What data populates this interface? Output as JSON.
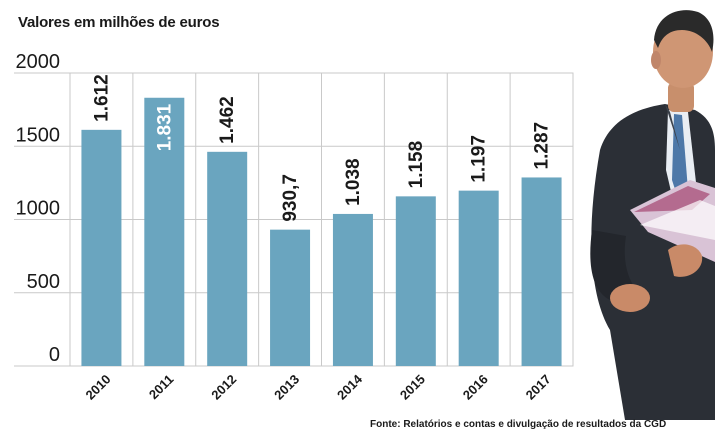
{
  "subtitle": "Valores em milhões de euros",
  "source": "Fonte: Relatórios e contas e divulgação de resultados da CGD",
  "chart_data": {
    "type": "bar",
    "categories": [
      "2010",
      "2011",
      "2012",
      "2013",
      "2014",
      "2015",
      "2016",
      "2017"
    ],
    "values": [
      1612,
      1831,
      1462,
      930.7,
      1038,
      1158,
      1197,
      1287
    ],
    "data_labels": [
      "1.612",
      "1.831",
      "1.462",
      "930,7",
      "1.038",
      "1.158",
      "1.197",
      "1.287"
    ],
    "label_inside": [
      false,
      true,
      false,
      false,
      false,
      false,
      false,
      false
    ],
    "title": "",
    "xlabel": "",
    "ylabel": "",
    "ylim": [
      0,
      2000
    ],
    "yticks": [
      0,
      500,
      1000,
      1500,
      2000
    ],
    "grid": true,
    "legend": "none",
    "colors": {
      "bar": "#6aa5bf",
      "grid": "#c9c9c9",
      "text": "#1a1a1a",
      "label_inside": "#ffffff"
    }
  },
  "photo": {
    "icon": "person-in-suit-holding-report"
  }
}
